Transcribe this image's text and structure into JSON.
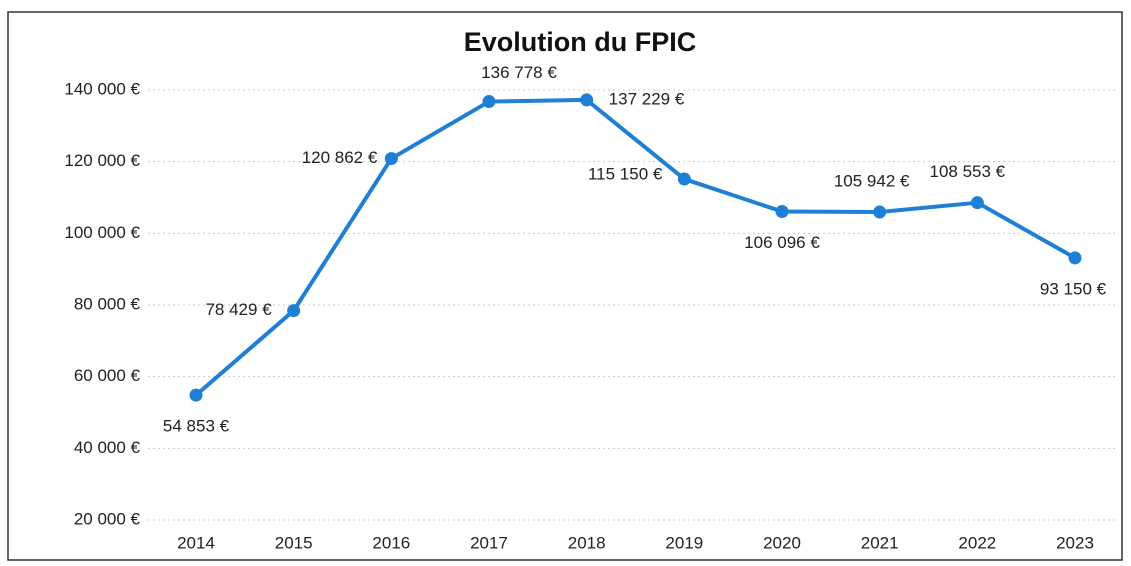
{
  "chart_data": {
    "type": "line",
    "title": "Evolution du FPIC",
    "categories": [
      "2014",
      "2015",
      "2016",
      "2017",
      "2018",
      "2019",
      "2020",
      "2021",
      "2022",
      "2023"
    ],
    "series": [
      {
        "name": "FPIC",
        "color": "#1f7fd6",
        "values": [
          54853,
          78429,
          120862,
          136778,
          137229,
          115150,
          106096,
          105942,
          108553,
          93150
        ],
        "value_labels": [
          "54 853 €",
          "78 429 €",
          "120 862 €",
          "136 778 €",
          "137 229 €",
          "115 150 €",
          "106 096 €",
          "105 942 €",
          "108 553 €",
          "93 150 €"
        ]
      }
    ],
    "ylim": [
      20000,
      140000
    ],
    "yticks": [
      {
        "value": 20000,
        "label": "20 000 €"
      },
      {
        "value": 40000,
        "label": "40 000 €"
      },
      {
        "value": 60000,
        "label": "60 000 €"
      },
      {
        "value": 80000,
        "label": "80 000 €"
      },
      {
        "value": 100000,
        "label": "100 000 €"
      },
      {
        "value": 120000,
        "label": "120 000 €"
      },
      {
        "value": 140000,
        "label": "140 000 €"
      }
    ],
    "grid": true
  }
}
